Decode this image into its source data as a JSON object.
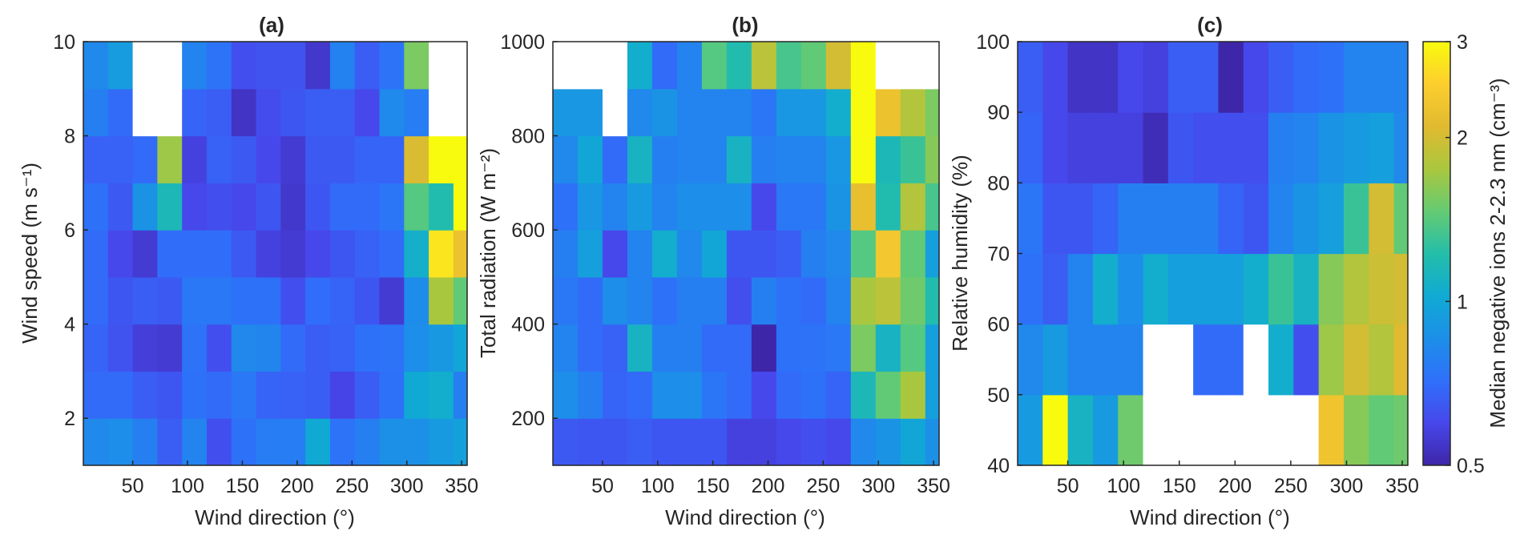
{
  "colors": {
    "colormap": "parula",
    "missing": "#ffffff",
    "axis": "#262626"
  },
  "colorbar": {
    "label": "Median negative ions 2-2.3 nm (cm⁻³)",
    "scale": "log",
    "range": [
      0.5,
      3
    ],
    "ticks": [
      0.5,
      1,
      2,
      3
    ],
    "tick_labels": [
      "0.5",
      "1",
      "2",
      "3"
    ]
  },
  "chart_data": [
    {
      "type": "heatmap",
      "title": "(a)",
      "xlabel": "Wind direction (°)",
      "ylabel": "Wind speed  (m s⁻¹)",
      "xlim": [
        5,
        355
      ],
      "ylim": [
        1,
        10
      ],
      "x_ticks": [
        50,
        100,
        150,
        200,
        250,
        300,
        350
      ],
      "y_ticks": [
        2,
        4,
        6,
        8,
        10
      ],
      "x_bins": [
        5,
        27.5,
        50,
        72.5,
        95,
        117.5,
        140,
        162.5,
        185,
        207.5,
        230,
        252.5,
        275,
        297.5,
        320,
        342.5,
        355
      ],
      "y_bins": [
        1,
        2,
        3,
        4,
        5,
        6,
        7,
        8,
        9,
        10
      ],
      "z": [
        [
          0.82,
          0.85,
          0.78,
          0.66,
          0.8,
          0.62,
          0.72,
          0.77,
          0.77,
          1.02,
          0.73,
          0.78,
          0.86,
          0.86,
          0.92,
          0.96
        ],
        [
          0.7,
          0.7,
          0.66,
          0.64,
          0.72,
          0.7,
          0.75,
          0.68,
          0.67,
          0.66,
          0.59,
          0.66,
          0.72,
          1.02,
          1.05,
          0.78
        ],
        [
          0.68,
          0.63,
          0.57,
          0.56,
          0.73,
          0.62,
          0.82,
          0.81,
          0.7,
          0.66,
          0.67,
          0.72,
          0.73,
          0.85,
          0.91,
          1.0
        ],
        [
          0.7,
          0.64,
          0.66,
          0.65,
          0.75,
          0.75,
          0.72,
          0.72,
          0.62,
          0.71,
          0.68,
          0.64,
          0.56,
          0.84,
          1.75,
          1.45
        ],
        [
          0.7,
          0.6,
          0.56,
          0.71,
          0.71,
          0.71,
          0.65,
          0.58,
          0.56,
          0.6,
          0.64,
          0.67,
          0.7,
          1.07,
          2.75,
          2.25
        ],
        [
          0.72,
          0.65,
          0.88,
          1.15,
          0.6,
          0.62,
          0.6,
          0.64,
          0.55,
          0.64,
          0.7,
          0.7,
          0.74,
          1.4,
          1.2,
          3.0
        ],
        [
          0.67,
          0.67,
          0.7,
          1.7,
          0.58,
          0.67,
          0.65,
          0.6,
          0.56,
          0.65,
          0.65,
          0.68,
          0.68,
          2.05,
          3.0,
          3.0
        ],
        [
          0.78,
          0.7,
          null,
          null,
          0.68,
          0.66,
          0.54,
          0.61,
          0.64,
          0.66,
          0.66,
          0.6,
          0.83,
          0.77,
          null,
          null
        ],
        [
          0.82,
          0.93,
          null,
          null,
          0.8,
          0.73,
          0.62,
          0.63,
          0.63,
          0.55,
          0.79,
          0.66,
          0.73,
          1.55,
          null,
          null
        ]
      ]
    },
    {
      "type": "heatmap",
      "title": "(b)",
      "xlabel": "Wind direction (°)",
      "ylabel": "Total radiation (W m⁻²)",
      "xlim": [
        5,
        355
      ],
      "ylim": [
        100,
        1000
      ],
      "x_ticks": [
        50,
        100,
        150,
        200,
        250,
        300,
        350
      ],
      "y_ticks": [
        200,
        400,
        600,
        800,
        1000
      ],
      "x_bins": [
        5,
        27.5,
        50,
        72.5,
        95,
        117.5,
        140,
        162.5,
        185,
        207.5,
        230,
        252.5,
        275,
        297.5,
        320,
        342.5,
        355
      ],
      "y_bins": [
        100,
        200,
        300,
        400,
        500,
        600,
        700,
        800,
        900,
        1000
      ],
      "z": [
        [
          0.65,
          0.64,
          0.64,
          0.66,
          0.64,
          0.64,
          0.64,
          0.58,
          0.58,
          0.6,
          0.62,
          0.6,
          0.82,
          0.88,
          1.0,
          0.86
        ],
        [
          0.85,
          0.78,
          0.68,
          0.7,
          0.85,
          0.85,
          0.74,
          0.7,
          0.6,
          0.7,
          0.72,
          0.68,
          1.15,
          1.45,
          1.75,
          0.95
        ],
        [
          0.8,
          0.7,
          0.67,
          1.1,
          0.78,
          0.78,
          0.7,
          0.7,
          0.48,
          0.72,
          0.73,
          0.75,
          1.55,
          1.1,
          1.4,
          0.95
        ],
        [
          0.75,
          0.7,
          0.85,
          0.8,
          0.72,
          0.78,
          0.78,
          0.62,
          0.78,
          0.72,
          0.7,
          0.8,
          1.75,
          1.85,
          1.5,
          1.2
        ],
        [
          0.78,
          0.95,
          0.6,
          0.8,
          1.05,
          0.82,
          1.0,
          0.64,
          0.64,
          0.66,
          0.78,
          0.82,
          1.4,
          2.35,
          1.45,
          0.95
        ],
        [
          0.72,
          0.9,
          0.8,
          0.92,
          0.8,
          0.85,
          0.85,
          0.85,
          0.6,
          0.75,
          0.75,
          0.88,
          2.2,
          1.2,
          1.8,
          1.35
        ],
        [
          0.82,
          1.0,
          0.7,
          1.1,
          0.78,
          0.8,
          0.8,
          1.1,
          0.78,
          0.8,
          0.8,
          0.9,
          3.0,
          1.15,
          1.3,
          1.6
        ],
        [
          0.9,
          0.9,
          null,
          0.82,
          0.88,
          0.8,
          0.8,
          0.8,
          0.74,
          0.9,
          0.9,
          1.05,
          3.0,
          2.25,
          1.8,
          1.55
        ],
        [
          null,
          null,
          null,
          1.05,
          0.7,
          0.8,
          1.4,
          1.2,
          1.85,
          1.35,
          1.45,
          2.0,
          3.0,
          null,
          null,
          null
        ]
      ]
    },
    {
      "type": "heatmap",
      "title": "(c)",
      "xlabel": "Wind direction (°)",
      "ylabel": "Relative humidity (%)",
      "xlim": [
        5,
        355
      ],
      "ylim": [
        40,
        100
      ],
      "x_ticks": [
        50,
        100,
        150,
        200,
        250,
        300,
        350
      ],
      "y_ticks": [
        40,
        50,
        60,
        70,
        80,
        90,
        100
      ],
      "x_bins": [
        5,
        27.5,
        50,
        72.5,
        95,
        117.5,
        140,
        162.5,
        185,
        207.5,
        230,
        252.5,
        275,
        297.5,
        320,
        342.5,
        355
      ],
      "y_bins": [
        40,
        50,
        60,
        70,
        80,
        90,
        100
      ],
      "z": [
        [
          0.92,
          3.0,
          1.1,
          0.92,
          1.5,
          null,
          null,
          null,
          null,
          null,
          null,
          null,
          2.3,
          1.6,
          1.45,
          1.5
        ],
        [
          0.82,
          0.92,
          0.8,
          0.8,
          0.8,
          null,
          null,
          0.7,
          0.7,
          null,
          1.05,
          0.62,
          1.7,
          2.0,
          1.8,
          2.1
        ],
        [
          0.72,
          0.66,
          0.8,
          1.05,
          0.85,
          1.05,
          0.95,
          0.95,
          0.95,
          1.05,
          1.3,
          1.1,
          1.6,
          1.8,
          1.95,
          2.0
        ],
        [
          0.74,
          0.64,
          0.64,
          0.68,
          0.78,
          0.78,
          0.78,
          0.78,
          0.68,
          0.64,
          0.8,
          0.88,
          0.95,
          1.3,
          2.0,
          1.45
        ],
        [
          0.68,
          0.6,
          0.58,
          0.58,
          0.58,
          0.52,
          0.64,
          0.62,
          0.62,
          0.62,
          0.78,
          0.8,
          0.88,
          0.92,
          0.95,
          0.82
        ],
        [
          0.66,
          0.6,
          0.54,
          0.54,
          0.6,
          0.58,
          0.66,
          0.66,
          0.5,
          0.6,
          0.66,
          0.7,
          0.72,
          0.8,
          0.8,
          0.8
        ]
      ]
    }
  ]
}
